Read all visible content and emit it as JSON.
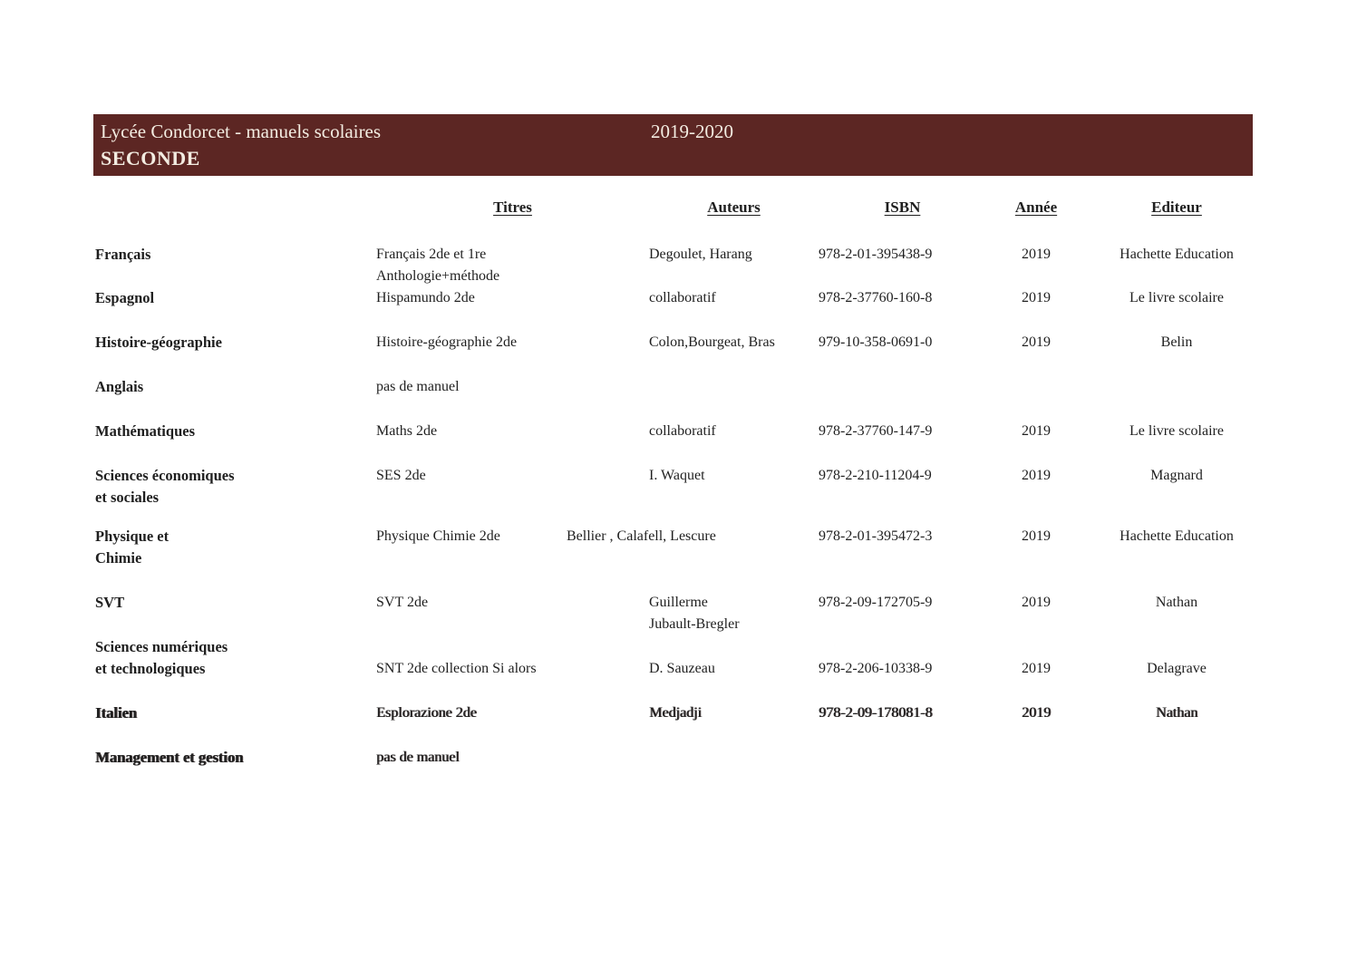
{
  "banner": {
    "title": "Lycée Condorcet - manuels scolaires",
    "year": "2019-2020",
    "level": "SECONDE",
    "bg_color": "#5c2623",
    "text_color": "#f3ece1"
  },
  "table": {
    "headers": [
      "Titres",
      "Auteurs",
      "ISBN",
      "Année",
      "Editeur"
    ],
    "rows": [
      {
        "subject": [
          "Français"
        ],
        "titre": [
          "Français 2de et 1re",
          "Anthologie+méthode"
        ],
        "auteurs": [
          "Degoulet, Harang"
        ],
        "isbn": "978-2-01-395438-9",
        "annee": "2019",
        "editeur": "Hachette Education"
      },
      {
        "subject": [
          "Espagnol"
        ],
        "titre": [
          "Hispamundo 2de"
        ],
        "auteurs": [
          "collaboratif"
        ],
        "isbn": "978-2-37760-160-8",
        "annee": "2019",
        "editeur": "Le livre scolaire"
      },
      {
        "subject": [
          "Histoire-géographie"
        ],
        "titre": [
          "Histoire-géographie 2de"
        ],
        "auteurs": [
          "Colon,Bourgeat, Bras"
        ],
        "isbn": "979-10-358-0691-0",
        "annee": "2019",
        "editeur": "Belin"
      },
      {
        "subject": [
          "Anglais"
        ],
        "titre": [
          "pas de manuel"
        ],
        "auteurs": [],
        "isbn": "",
        "annee": "",
        "editeur": ""
      },
      {
        "subject": [
          "Mathématiques"
        ],
        "titre": [
          "Maths 2de"
        ],
        "auteurs": [
          "collaboratif"
        ],
        "isbn": "978-2-37760-147-9",
        "annee": "2019",
        "editeur": "Le livre scolaire"
      },
      {
        "subject": [
          "Sciences économiques",
          "et sociales"
        ],
        "titre": [
          "SES 2de"
        ],
        "auteurs": [
          "I. Waquet"
        ],
        "isbn": "978-2-210-11204-9",
        "annee": "2019",
        "editeur": "Magnard"
      },
      {
        "subject": [
          "Physique et",
          "Chimie"
        ],
        "titre": [
          "Physique Chimie 2de"
        ],
        "auteurs": [
          "Bellier , Calafell, Lescure"
        ],
        "isbn": "978-2-01-395472-3",
        "annee": "2019",
        "editeur": "Hachette Education"
      },
      {
        "subject": [
          "SVT"
        ],
        "titre": [
          "SVT 2de"
        ],
        "auteurs": [
          "Guillerme",
          "Jubault-Bregler"
        ],
        "isbn": "978-2-09-172705-9",
        "annee": "2019",
        "editeur": "Nathan"
      },
      {
        "subject": [
          "Sciences numériques",
          "et technologiques"
        ],
        "titre": [
          "SNT 2de collection Si alors"
        ],
        "auteurs": [
          "D. Sauzeau"
        ],
        "isbn": "978-2-206-10338-9",
        "annee": "2019",
        "editeur": "Delagrave"
      },
      {
        "subject": [
          "Italien"
        ],
        "titre": [
          "Esplorazione 2de"
        ],
        "auteurs": [
          "Medjadji"
        ],
        "isbn": "978-2-09-178081-8",
        "annee": "2019",
        "editeur": "Nathan"
      },
      {
        "subject": [
          "Management et gestion"
        ],
        "titre": [
          "pas de manuel"
        ],
        "auteurs": [],
        "isbn": "",
        "annee": "",
        "editeur": ""
      }
    ]
  }
}
